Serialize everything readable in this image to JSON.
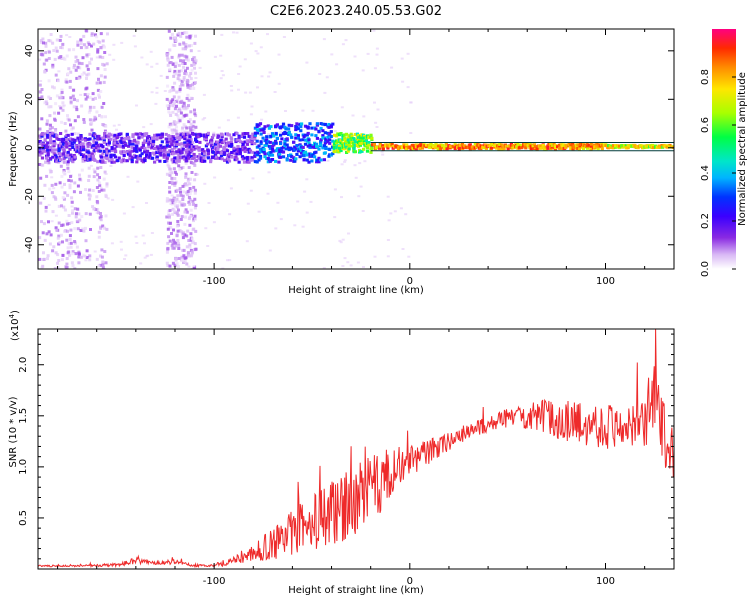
{
  "title": "C2E6.2023.240.05.53.G02",
  "chart_data": [
    {
      "type": "heatmap",
      "xlabel": "Height of straight line (km)",
      "ylabel": "Frequency (Hz)",
      "xlim": [
        -190,
        135
      ],
      "ylim": [
        -50,
        49
      ],
      "xticks": [
        -100,
        0,
        100
      ],
      "yticks": [
        -40,
        -20,
        0,
        20,
        40
      ],
      "colorbar": {
        "label": "Normalized spectral amplitude",
        "range": [
          0,
          1
        ],
        "ticks": [
          0.0,
          0.2,
          0.4,
          0.6,
          0.8
        ],
        "colormap": [
          "#ffffff",
          "#d9b8f5",
          "#8a2be2",
          "#3a00ff",
          "#0033ff",
          "#00b4ff",
          "#00e6c8",
          "#00ff44",
          "#a8ff00",
          "#ffe600",
          "#ff8c00",
          "#ff2a00",
          "#ff0080"
        ]
      },
      "band": [
        {
          "x_start": -190,
          "x_end": -80,
          "center_hz": 0,
          "half_width_hz": 6,
          "level": 0.3
        },
        {
          "x_start": -80,
          "x_end": -40,
          "center_hz": 2,
          "half_width_hz": 8,
          "level": 0.45
        },
        {
          "x_start": -40,
          "x_end": -20,
          "center_hz": 2,
          "half_width_hz": 4,
          "level": 0.75
        },
        {
          "x_start": -20,
          "x_end": 100,
          "center_hz": 0.5,
          "half_width_hz": 1,
          "level": 0.95
        },
        {
          "x_start": 100,
          "x_end": 135,
          "center_hz": 0.5,
          "half_width_hz": 0.5,
          "level": 0.85
        }
      ],
      "diffuse_regions": [
        {
          "x_start": -190,
          "x_end": -155,
          "f_min": -50,
          "f_max": 49
        },
        {
          "x_start": -125,
          "x_end": -110,
          "f_min": -50,
          "f_max": 49
        }
      ]
    },
    {
      "type": "line",
      "xlabel": "Height of straight line (km)",
      "ylabel": "SNR (10 * v/v)",
      "exponent_label": "(x10",
      "exponent_power": "4",
      "exponent_close": ")",
      "xlim": [
        -190,
        135
      ],
      "ylim": [
        0,
        2.35
      ],
      "xticks": [
        -100,
        0,
        100
      ],
      "yticks": [
        0.5,
        1.0,
        1.5,
        2.0
      ],
      "ytick_labels": [
        "0.5",
        "1.0",
        "1.5",
        "2.0"
      ],
      "color": "#ee2a2a",
      "x": [
        -190,
        -170,
        -150,
        -140,
        -130,
        -120,
        -110,
        -100,
        -90,
        -80,
        -70,
        -60,
        -50,
        -40,
        -30,
        -20,
        -10,
        0,
        10,
        20,
        30,
        40,
        50,
        60,
        70,
        80,
        90,
        100,
        110,
        115,
        120,
        125,
        130,
        135
      ],
      "y": [
        0.03,
        0.03,
        0.04,
        0.08,
        0.06,
        0.07,
        0.03,
        0.04,
        0.08,
        0.15,
        0.25,
        0.35,
        0.45,
        0.55,
        0.65,
        0.75,
        0.95,
        1.05,
        1.15,
        1.25,
        1.35,
        1.42,
        1.48,
        1.5,
        1.48,
        1.45,
        1.42,
        1.4,
        1.4,
        1.45,
        1.35,
        1.7,
        1.3,
        1.1
      ],
      "noise": [
        0.005,
        0.005,
        0.01,
        0.02,
        0.01,
        0.015,
        0.005,
        0.01,
        0.03,
        0.05,
        0.1,
        0.14,
        0.18,
        0.2,
        0.22,
        0.22,
        0.15,
        0.1,
        0.08,
        0.06,
        0.05,
        0.05,
        0.06,
        0.08,
        0.12,
        0.13,
        0.13,
        0.14,
        0.14,
        0.15,
        0.18,
        0.2,
        0.2,
        0.15
      ]
    }
  ]
}
